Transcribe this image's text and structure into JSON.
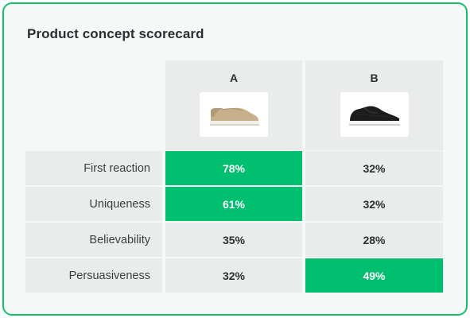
{
  "title": "Product concept scorecard",
  "accent_color": "#00bf6f",
  "columns": [
    {
      "label": "A",
      "image": "beige-slip-on-sneaker"
    },
    {
      "label": "B",
      "image": "black-knit-sneaker"
    }
  ],
  "rows": [
    {
      "label": "First reaction",
      "values": [
        "78%",
        "32%"
      ],
      "highlight": [
        true,
        false
      ]
    },
    {
      "label": "Uniqueness",
      "values": [
        "61%",
        "32%"
      ],
      "highlight": [
        true,
        false
      ]
    },
    {
      "label": "Believability",
      "values": [
        "35%",
        "28%"
      ],
      "highlight": [
        false,
        false
      ]
    },
    {
      "label": "Persuasiveness",
      "values": [
        "32%",
        "49%"
      ],
      "highlight": [
        false,
        true
      ]
    }
  ]
}
